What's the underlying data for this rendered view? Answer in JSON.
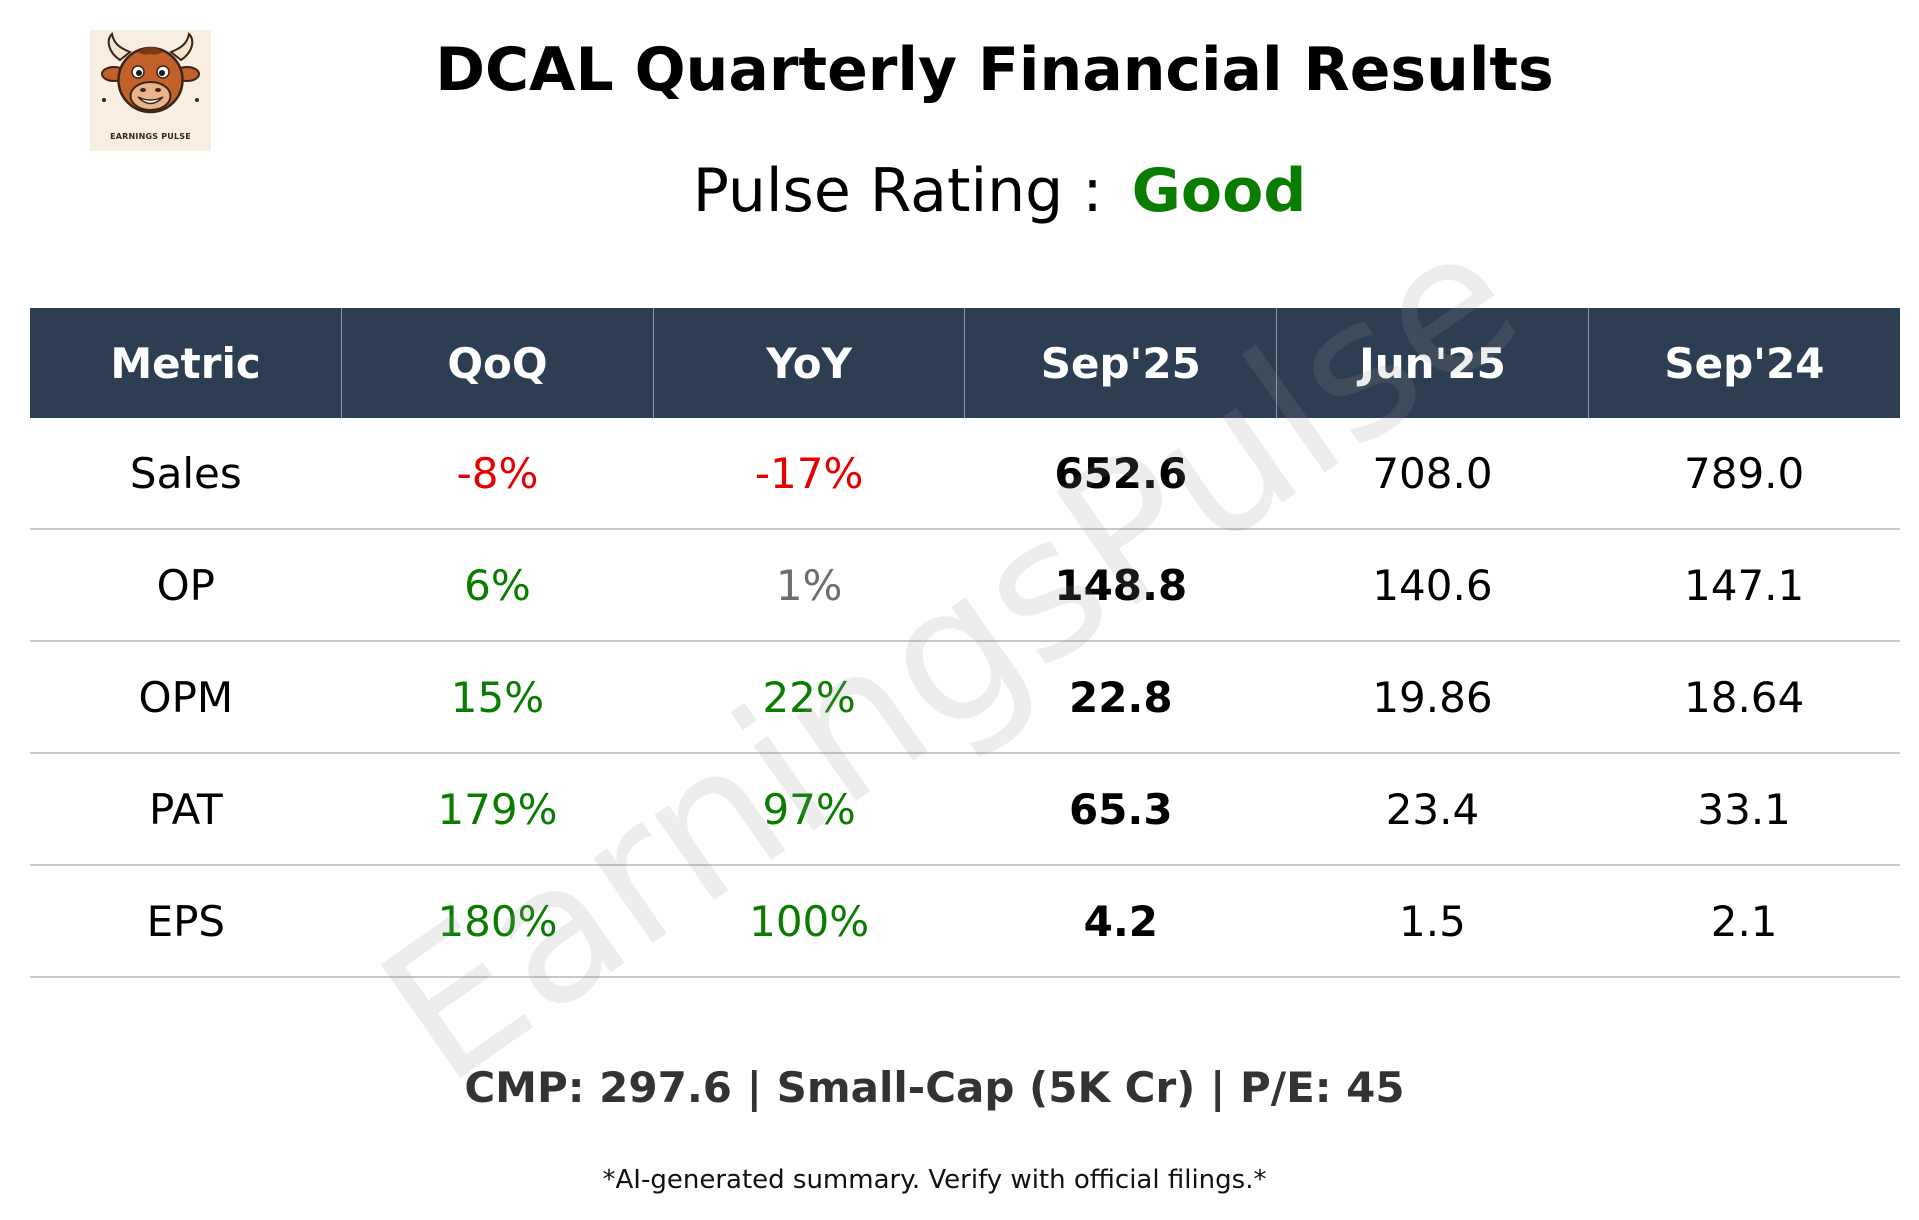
{
  "logo": {
    "text": "EARNINGS PULSE",
    "icon": "bull-mascot-icon"
  },
  "title": "DCAL Quarterly Financial Results",
  "rating": {
    "label": "Pulse Rating :",
    "value": "Good",
    "value_color": "#0a7d00"
  },
  "watermark": "EarningsPulse",
  "table": {
    "headers": [
      "Metric",
      "QoQ",
      "YoY",
      "Sep'25",
      "Jun'25",
      "Sep'24"
    ],
    "header_bg": "#2e3e52",
    "rows": [
      {
        "metric": "Sales",
        "qoq": "-8%",
        "yoy": "-17%",
        "sep25": "652.6",
        "jun25": "708.0",
        "sep24": "789.0"
      },
      {
        "metric": "OP",
        "qoq": "6%",
        "yoy": "1%",
        "sep25": "148.8",
        "jun25": "140.6",
        "sep24": "147.1"
      },
      {
        "metric": "OPM",
        "qoq": "15%",
        "yoy": "22%",
        "sep25": "22.8",
        "jun25": "19.86",
        "sep24": "18.64"
      },
      {
        "metric": "PAT",
        "qoq": "179%",
        "yoy": "97%",
        "sep25": "65.3",
        "jun25": "23.4",
        "sep24": "33.1"
      },
      {
        "metric": "EPS",
        "qoq": "180%",
        "yoy": "100%",
        "sep25": "4.2",
        "jun25": "1.5",
        "sep24": "2.1"
      }
    ],
    "colors": {
      "negative": "#e60000",
      "positive": "#0a7d00",
      "neutral": "#6e6e6e"
    }
  },
  "footer": {
    "info": "CMP: 297.6 | Small-Cap (5K Cr) | P/E: 45",
    "disclaimer": "*AI-generated summary. Verify with official filings.*"
  }
}
